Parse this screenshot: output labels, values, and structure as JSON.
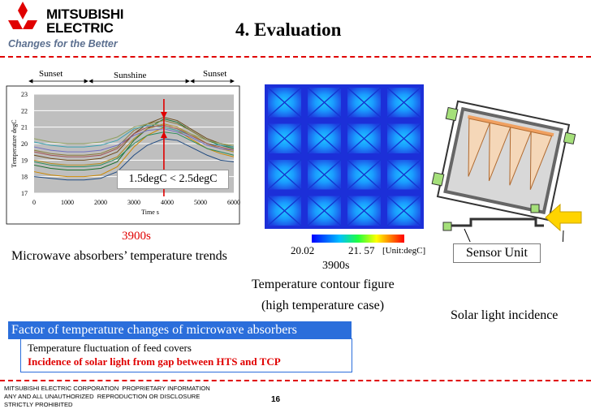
{
  "header": {
    "brand_line_1": "MITSUBISHI",
    "brand_line_2": "ELECTRIC",
    "tagline": "Changes for the Better",
    "title": "4. Evaluation",
    "logo_icon": "three-diamonds-logo-icon",
    "accent_color": "#e00000"
  },
  "chart": {
    "period_labels": [
      "Sunset",
      "Sunshine",
      "Sunset"
    ],
    "gap_label": "1.5degC < 2.5degC",
    "time_label": "3900s",
    "caption": "Microwave absorbers’ temperature trends"
  },
  "chart_data": {
    "type": "line",
    "xlabel": "Time s",
    "ylabel": "Temperature degC",
    "xlim": [
      0,
      6000
    ],
    "ylim": [
      17,
      23
    ],
    "xticks": [
      0,
      1000,
      2000,
      3000,
      4000,
      5000,
      6000
    ],
    "yticks": [
      17,
      18,
      19,
      20,
      21,
      22,
      23
    ],
    "grid": true,
    "x": [
      0,
      500,
      1000,
      1500,
      2000,
      2500,
      3000,
      3400,
      3900,
      4300,
      4700,
      5200,
      5600,
      6000
    ],
    "series": [
      {
        "values": [
          18.7,
          18.5,
          18.4,
          18.4,
          18.5,
          18.9,
          20.2,
          20.9,
          21.5,
          21.3,
          20.8,
          20.2,
          19.9,
          19.7
        ]
      },
      {
        "values": [
          19.3,
          19.1,
          19.0,
          19.0,
          19.1,
          19.5,
          20.6,
          21.2,
          21.6,
          21.4,
          20.9,
          20.3,
          20.0,
          19.8
        ]
      },
      {
        "values": [
          19.6,
          19.4,
          19.3,
          19.3,
          19.4,
          19.8,
          20.8,
          21.2,
          21.4,
          21.2,
          20.8,
          20.2,
          20.0,
          19.8
        ]
      },
      {
        "values": [
          19.0,
          18.8,
          18.7,
          18.7,
          18.8,
          19.2,
          20.3,
          20.9,
          21.2,
          21.0,
          20.6,
          20.0,
          19.7,
          19.5
        ]
      },
      {
        "values": [
          18.3,
          18.1,
          18.0,
          18.0,
          18.1,
          18.6,
          19.8,
          20.5,
          21.0,
          20.8,
          20.3,
          19.7,
          19.4,
          19.2
        ]
      },
      {
        "values": [
          20.1,
          19.9,
          19.8,
          19.8,
          19.9,
          20.2,
          20.9,
          21.1,
          21.0,
          20.8,
          20.5,
          20.0,
          19.9,
          19.8
        ]
      },
      {
        "values": [
          19.8,
          19.6,
          19.5,
          19.5,
          19.6,
          19.9,
          20.5,
          20.8,
          20.9,
          20.7,
          20.4,
          19.9,
          19.7,
          19.6
        ]
      },
      {
        "values": [
          18.0,
          17.9,
          17.8,
          17.8,
          17.9,
          18.3,
          19.3,
          19.9,
          20.3,
          20.2,
          19.8,
          19.3,
          19.0,
          18.9
        ]
      },
      {
        "values": [
          20.3,
          20.1,
          20.0,
          20.0,
          20.1,
          20.4,
          21.0,
          21.2,
          21.1,
          20.9,
          20.6,
          20.2,
          20.0,
          19.9
        ]
      },
      {
        "values": [
          18.9,
          18.7,
          18.6,
          18.6,
          18.7,
          19.1,
          20.0,
          20.5,
          20.7,
          20.6,
          20.2,
          19.7,
          19.5,
          19.3
        ]
      },
      {
        "values": [
          19.5,
          19.3,
          19.2,
          19.2,
          19.3,
          19.7,
          20.6,
          21.0,
          21.1,
          20.9,
          20.5,
          20.0,
          19.8,
          19.6
        ]
      }
    ],
    "series_colors": [
      "#1a6b2a",
      "#6b4a1a",
      "#8a7a3a",
      "#b08a20",
      "#cc8800",
      "#3aa0b0",
      "#7070c0",
      "#204a80",
      "#90a060",
      "#2a8a5a",
      "#a05050"
    ]
  },
  "contour": {
    "cb_min": "20.02",
    "cb_max": "21. 57",
    "unit": "[Unit:degC]",
    "time_label": "3900s",
    "caption_line_1": "Temperature contour figure",
    "caption_line_2": "(high temperature case)"
  },
  "sensor": {
    "label": "Sensor Unit",
    "solar_label": "Solar light incidence"
  },
  "factor": {
    "header": "Factor of temperature changes of microwave absorbers",
    "item_1": "Temperature fluctuation of feed covers",
    "item_2": "Incidence of solar light from gap between HTS and TCP",
    "header_color": "#2b6edb"
  },
  "footer": {
    "notice": "MITSUBISHI ELECTRIC CORPORATION  PROPRIETARY INFORMATION\nANY AND ALL UNAUTHORIZED  REPRODUCTION OR DISCLOSURE\nSTRICTLY PROHIBITED",
    "page_number": "16"
  }
}
